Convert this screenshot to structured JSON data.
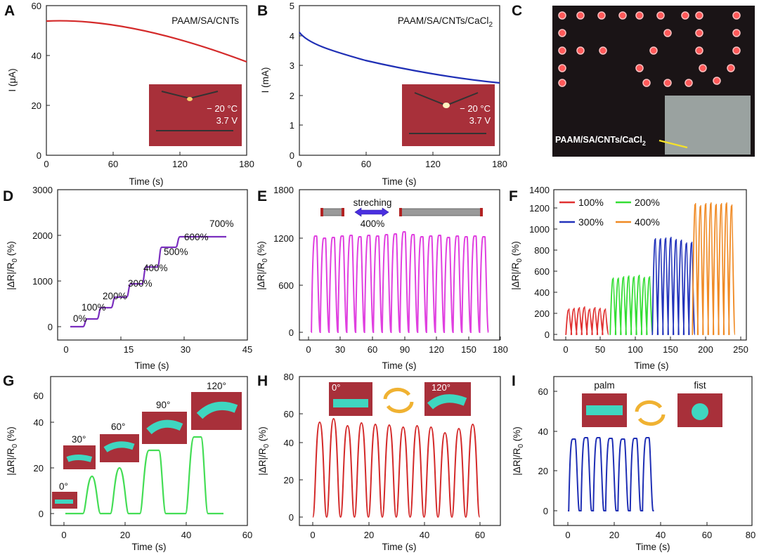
{
  "chart_data": [
    {
      "panel": "A",
      "type": "line",
      "title": "PAAM/SA/CNTs",
      "xlabel": "Time (s)",
      "ylabel": "I (μA)",
      "xlim": [
        0,
        180
      ],
      "ylim": [
        0,
        60
      ],
      "xticks": [
        0,
        60,
        120,
        180
      ],
      "yticks": [
        0,
        20,
        40,
        60
      ],
      "color": "#d42a2a",
      "inset": {
        "temperature": "− 20 °C",
        "voltage": "3.7 V"
      }
    },
    {
      "panel": "B",
      "type": "line",
      "title_main": "PAAM/SA/CNTs/CaCl",
      "title_sub": "2",
      "xlabel": "Time (s)",
      "ylabel": "I (mA)",
      "xlim": [
        0,
        180
      ],
      "ylim": [
        0,
        5
      ],
      "xticks": [
        0,
        60,
        120,
        180
      ],
      "yticks": [
        0,
        1,
        2,
        3,
        4,
        5
      ],
      "color": "#1f2fb5",
      "inset": {
        "temperature": "− 20 °C",
        "voltage": "3.7 V"
      }
    },
    {
      "panel": "C",
      "type": "photo",
      "label_main": "PAAM/SA/CNTs/CaCl",
      "label_sub": "2"
    },
    {
      "panel": "D",
      "type": "line",
      "xlabel": "Time (s)",
      "ylabel_main": "|ΔR|/R",
      "ylabel_sub": "0",
      "ylabel_tail": " (%)",
      "xlim": [
        0,
        45
      ],
      "ylim": [
        -200,
        3000
      ],
      "xticks": [
        0,
        15,
        30,
        45
      ],
      "yticks": [
        0,
        1000,
        2000,
        3000
      ],
      "color": "#7b2fbf",
      "annotations": [
        "0%",
        "100%",
        "200%",
        "300%",
        "400%",
        "500%",
        "600%",
        "700%"
      ]
    },
    {
      "panel": "E",
      "type": "line",
      "xlabel": "Time (s)",
      "ylabel_main": "|ΔR|/R",
      "ylabel_sub": "0",
      "ylabel_tail": " (%)",
      "xlim": [
        -8,
        180
      ],
      "ylim": [
        -60,
        1800
      ],
      "xticks": [
        0,
        30,
        60,
        90,
        120,
        150,
        180
      ],
      "yticks": [
        0,
        600,
        1200,
        1800
      ],
      "color": "#e040e0",
      "inset": {
        "label": "streching",
        "strain": "400%"
      }
    },
    {
      "panel": "F",
      "type": "line",
      "xlabel": "Time (s)",
      "ylabel_main": "|ΔR|/R",
      "ylabel_sub": "0",
      "ylabel_tail": " (%)",
      "xlim": [
        -15,
        260
      ],
      "ylim": [
        -40,
        1400
      ],
      "xticks": [
        0,
        50,
        100,
        150,
        200,
        250
      ],
      "yticks": [
        0,
        200,
        400,
        600,
        800,
        1000,
        1200,
        1400
      ],
      "series": [
        {
          "name": "100%",
          "color": "#e03030"
        },
        {
          "name": "200%",
          "color": "#33dd33"
        },
        {
          "name": "300%",
          "color": "#2233bb"
        },
        {
          "name": "400%",
          "color": "#f08a24"
        }
      ]
    },
    {
      "panel": "G",
      "type": "line",
      "xlabel": "Time (s)",
      "ylabel_main": "|ΔR|/R",
      "ylabel_sub": "0",
      "ylabel_tail": " (%)",
      "xlim": [
        -3,
        60
      ],
      "ylim": [
        -3,
        68
      ],
      "xticks": [
        0,
        20,
        40,
        60
      ],
      "yticks": [
        0,
        20,
        40,
        60
      ],
      "color": "#44dd55",
      "annotations": [
        "0°",
        "30°",
        "60°",
        "90°",
        "120°"
      ]
    },
    {
      "panel": "H",
      "type": "line",
      "xlabel": "Time (s)",
      "ylabel_main": "|ΔR|/R",
      "ylabel_sub": "0",
      "ylabel_tail": " (%)",
      "xlim": [
        -4,
        68
      ],
      "ylim": [
        -4,
        80
      ],
      "xticks": [
        0,
        20,
        40,
        60
      ],
      "yticks": [
        0,
        20,
        40,
        60,
        80
      ],
      "color": "#d42a2a",
      "annotations": [
        "0°",
        "120°"
      ]
    },
    {
      "panel": "I",
      "type": "line",
      "xlabel": "Time (s)",
      "ylabel_main": "|ΔR|/R",
      "ylabel_sub": "0",
      "ylabel_tail": " (%)",
      "xlim": [
        -5,
        80
      ],
      "ylim": [
        -5,
        70
      ],
      "xticks": [
        0,
        20,
        40,
        60,
        80
      ],
      "yticks": [
        0,
        20,
        40,
        60
      ],
      "color": "#1f2fb5",
      "annotations": [
        "palm",
        "fist"
      ]
    }
  ],
  "panel_labels": [
    "A",
    "B",
    "C",
    "D",
    "E",
    "F",
    "G",
    "H",
    "I"
  ]
}
